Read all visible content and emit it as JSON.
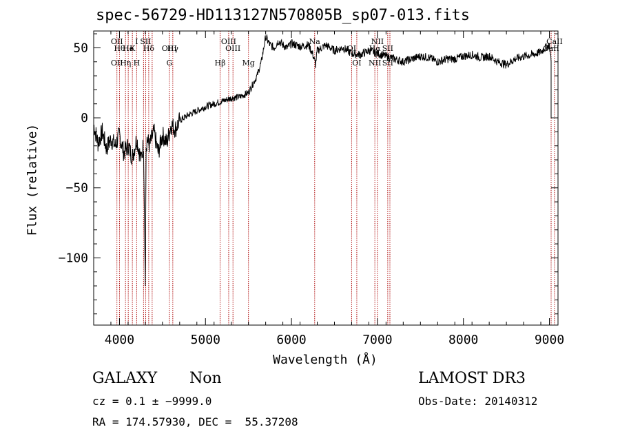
{
  "chart_data": {
    "type": "line",
    "title": "spec-56729-HD113127N570805B_sp07-013.fits",
    "xlabel": "Wavelength (Å)",
    "ylabel": "Flux (relative)",
    "xlim": [
      3700,
      9100
    ],
    "ylim": [
      -148,
      62
    ],
    "x_ticks": [
      4000,
      5000,
      6000,
      7000,
      8000,
      9000
    ],
    "x_tick_labels": [
      "4000",
      "5000",
      "6000",
      "7000",
      "8000",
      "9000"
    ],
    "y_ticks": [
      50,
      0,
      -50,
      -100
    ],
    "y_tick_labels": [
      "50",
      "0",
      "−50",
      "−100"
    ],
    "series": [
      {
        "name": "spectrum",
        "x": [
          3700,
          3750,
          3800,
          3850,
          3900,
          3950,
          4000,
          4050,
          4100,
          4150,
          4200,
          4250,
          4280,
          4300,
          4310,
          4320,
          4350,
          4400,
          4450,
          4500,
          4550,
          4600,
          4650,
          4700,
          4800,
          4900,
          5000,
          5100,
          5200,
          5300,
          5400,
          5500,
          5600,
          5650,
          5700,
          5750,
          5800,
          5850,
          5900,
          5950,
          6000,
          6100,
          6200,
          6250,
          6280,
          6300,
          6350,
          6400,
          6500,
          6600,
          6700,
          6800,
          6900,
          6950,
          7000,
          7100,
          7200,
          7300,
          7400,
          7500,
          7600,
          7700,
          7800,
          7900,
          8000,
          8100,
          8200,
          8300,
          8400,
          8500,
          8600,
          8700,
          8800,
          8900,
          8950,
          9000,
          9020
        ],
        "y": [
          -5,
          -18,
          -10,
          -22,
          -15,
          -20,
          -12,
          -25,
          -20,
          -28,
          -15,
          -30,
          -18,
          -120,
          -22,
          -15,
          -20,
          -10,
          -25,
          -12,
          -18,
          -5,
          -8,
          -2,
          2,
          5,
          8,
          10,
          12,
          14,
          15,
          18,
          30,
          40,
          58,
          52,
          50,
          55,
          52,
          50,
          53,
          51,
          52,
          45,
          38,
          48,
          50,
          52,
          48,
          50,
          46,
          45,
          48,
          47,
          46,
          44,
          42,
          40,
          42,
          44,
          43,
          40,
          42,
          42,
          44,
          45,
          43,
          44,
          40,
          38,
          42,
          44,
          45,
          47,
          50,
          52,
          40
        ]
      }
    ],
    "line_markers": [
      {
        "x": 3970,
        "top": "OII",
        "mid": "",
        "bot": "OII"
      },
      {
        "x": 4000,
        "top": "",
        "mid": "Hθ",
        "bot": ""
      },
      {
        "x": 4070,
        "top": "",
        "mid": "",
        "bot": "Hη"
      },
      {
        "x": 4102,
        "top": "",
        "mid": "He",
        "bot": ""
      },
      {
        "x": 4150,
        "top": "",
        "mid": "K",
        "bot": ""
      },
      {
        "x": 4200,
        "top": "I",
        "mid": "",
        "bot": "H"
      },
      {
        "x": 4280,
        "top": "",
        "mid": "",
        "bot": ""
      },
      {
        "x": 4305,
        "top": "SII",
        "mid": "",
        "bot": ""
      },
      {
        "x": 4340,
        "top": "",
        "mid": "Hδ",
        "bot": ""
      },
      {
        "x": 4380,
        "top": "",
        "mid": "",
        "bot": ""
      },
      {
        "x": 4580,
        "top": "",
        "mid": "OIII",
        "bot": "G"
      },
      {
        "x": 4620,
        "top": "",
        "mid": "Hγ",
        "bot": ""
      },
      {
        "x": 5170,
        "top": "",
        "mid": "",
        "bot": "Hβ"
      },
      {
        "x": 5270,
        "top": "OIII",
        "mid": "",
        "bot": ""
      },
      {
        "x": 5320,
        "top": "",
        "mid": "OIII",
        "bot": ""
      },
      {
        "x": 5500,
        "top": "",
        "mid": "",
        "bot": "Mg"
      },
      {
        "x": 6270,
        "top": "Na",
        "mid": "",
        "bot": ""
      },
      {
        "x": 6700,
        "top": "",
        "mid": "OI",
        "bot": ""
      },
      {
        "x": 6760,
        "top": "",
        "mid": "",
        "bot": "OI"
      },
      {
        "x": 6970,
        "top": "",
        "mid": "Hα",
        "bot": "NII"
      },
      {
        "x": 7000,
        "top": "NII",
        "mid": "",
        "bot": ""
      },
      {
        "x": 7120,
        "top": "",
        "mid": "SII",
        "bot": "SII"
      },
      {
        "x": 7145,
        "top": "",
        "mid": "",
        "bot": ""
      },
      {
        "x": 9020,
        "top": "",
        "mid": "CaII",
        "bot": ""
      },
      {
        "x": 9060,
        "top": "CaII",
        "mid": "",
        "bot": ""
      }
    ]
  },
  "footer": {
    "class_label": "GALAXY",
    "subclass_label": "Non",
    "cz_text": "cz = 0.1 ± −9999.0",
    "coords_text": "RA = 174.57930, DEC =  55.37208",
    "survey_label": "LAMOST DR3",
    "obs_date_text": "Obs-Date: 20140312"
  }
}
